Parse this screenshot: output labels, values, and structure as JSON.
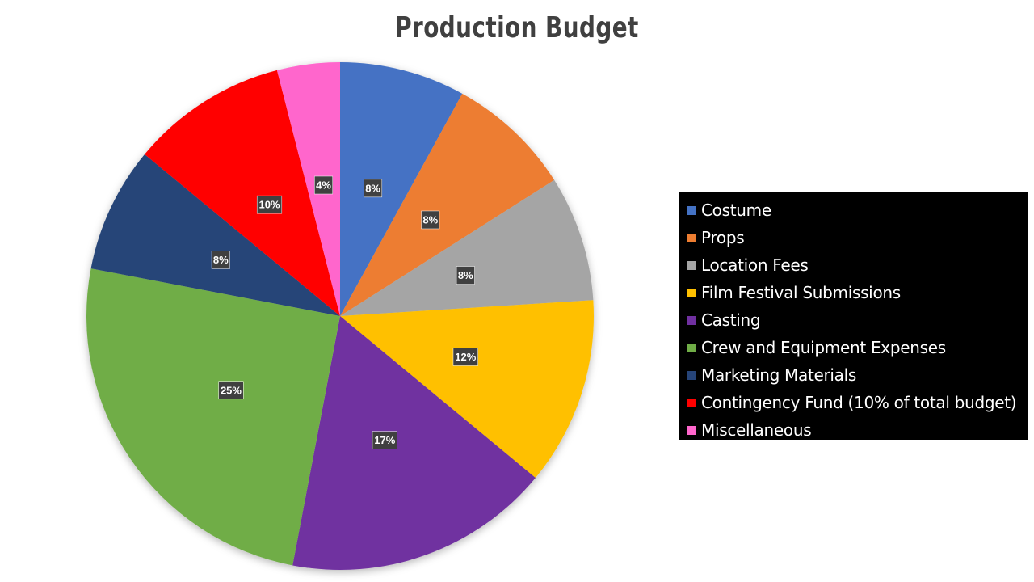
{
  "chart_data": {
    "type": "pie",
    "title": "Production Budget",
    "categories": [
      "Costume",
      "Props",
      "Location Fees",
      "Film Festival Submissions",
      "Casting",
      "Crew and Equipment Expenses",
      "Marketing Materials",
      "Contingency Fund (10% of total budget)",
      "Miscellaneous"
    ],
    "values": [
      8,
      8,
      8,
      12,
      17,
      25,
      8,
      10,
      4
    ],
    "data_labels": [
      "8%",
      "8%",
      "8%",
      "12%",
      "17%",
      "25%",
      "8%",
      "10%",
      "4%"
    ],
    "colors": [
      "#4472C4",
      "#ED7D31",
      "#A5A5A5",
      "#FFC000",
      "#7030A0",
      "#70AD47",
      "#264478",
      "#FF0000",
      "#FF66CC"
    ],
    "legend_position": "right",
    "legend_background": "#000000",
    "start_angle": "12 o'clock, clockwise"
  }
}
